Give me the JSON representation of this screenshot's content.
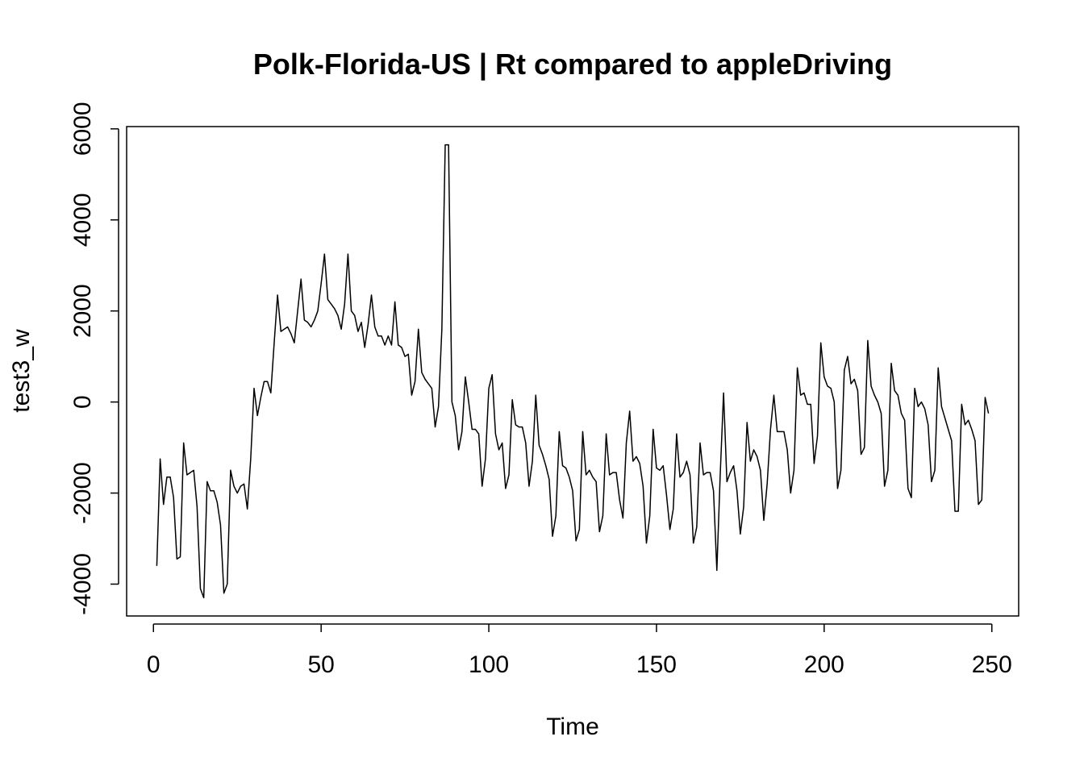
{
  "chart_data": {
    "type": "line",
    "title": "Polk-Florida-US | Rt compared to appleDriving",
    "xlabel": "Time",
    "ylabel": "test3_w",
    "xlim": [
      -8,
      258
    ],
    "ylim": [
      -4700,
      6050
    ],
    "xticks": [
      0,
      50,
      100,
      150,
      200,
      250
    ],
    "yticks": [
      -4000,
      -2000,
      0,
      2000,
      4000,
      6000
    ],
    "grid": false,
    "legend": "none",
    "line_color": "#000000",
    "series": [
      {
        "x_start": 1,
        "values": [
          -3600,
          -1250,
          -2250,
          -1650,
          -1650,
          -2100,
          -3450,
          -3400,
          -900,
          -1600,
          -1550,
          -1500,
          -2300,
          -4100,
          -4300,
          -1750,
          -1950,
          -1950,
          -2200,
          -2700,
          -4200,
          -4000,
          -1500,
          -1850,
          -2000,
          -1850,
          -1800,
          -2350,
          -1250,
          300,
          -300,
          100,
          450,
          450,
          200,
          1300,
          2350,
          1550,
          1600,
          1650,
          1500,
          1300,
          2000,
          2700,
          1800,
          1750,
          1650,
          1800,
          2000,
          2600,
          3250,
          2250,
          2150,
          2050,
          1900,
          1600,
          2150,
          3250,
          2000,
          1900,
          1550,
          1750,
          1200,
          1700,
          2350,
          1650,
          1450,
          1450,
          1250,
          1450,
          1250,
          2200,
          1250,
          1200,
          1000,
          1050,
          150,
          450,
          1600,
          650,
          500,
          400,
          300,
          -550,
          -100,
          1600,
          5650,
          5650,
          0,
          -300,
          -1050,
          -650,
          550,
          0,
          -600,
          -600,
          -700,
          -1850,
          -1250,
          300,
          600,
          -700,
          -1050,
          -900,
          -1900,
          -1600,
          50,
          -500,
          -550,
          -550,
          -900,
          -1850,
          -1300,
          150,
          -950,
          -1150,
          -1400,
          -1700,
          -2950,
          -2500,
          -650,
          -1400,
          -1450,
          -1650,
          -1950,
          -3050,
          -2800,
          -650,
          -1600,
          -1500,
          -1650,
          -1750,
          -2850,
          -2500,
          -700,
          -1600,
          -1550,
          -1550,
          -2150,
          -2550,
          -900,
          -200,
          -1300,
          -1200,
          -1350,
          -1850,
          -3100,
          -2500,
          -600,
          -1450,
          -1500,
          -1400,
          -2050,
          -2800,
          -2350,
          -700,
          -1650,
          -1550,
          -1300,
          -1600,
          -3100,
          -2750,
          -900,
          -1600,
          -1550,
          -1550,
          -1950,
          -3700,
          -1600,
          200,
          -1750,
          -1550,
          -1400,
          -1950,
          -2900,
          -2300,
          -450,
          -1300,
          -1050,
          -1200,
          -1500,
          -2600,
          -1800,
          -600,
          150,
          -650,
          -650,
          -650,
          -1050,
          -2000,
          -1500,
          750,
          150,
          200,
          -50,
          -50,
          -1350,
          -750,
          1300,
          550,
          350,
          300,
          0,
          -1900,
          -1500,
          700,
          1000,
          400,
          500,
          250,
          -1150,
          -1000,
          1350,
          350,
          150,
          0,
          -250,
          -1850,
          -1500,
          850,
          250,
          150,
          -250,
          -400,
          -1900,
          -2100,
          300,
          -100,
          0,
          -150,
          -500,
          -1750,
          -1500,
          750,
          -100,
          -350,
          -600,
          -850,
          -2400,
          -2400,
          -50,
          -500,
          -400,
          -600,
          -850,
          -2250,
          -2150,
          100,
          -250
        ]
      }
    ]
  }
}
